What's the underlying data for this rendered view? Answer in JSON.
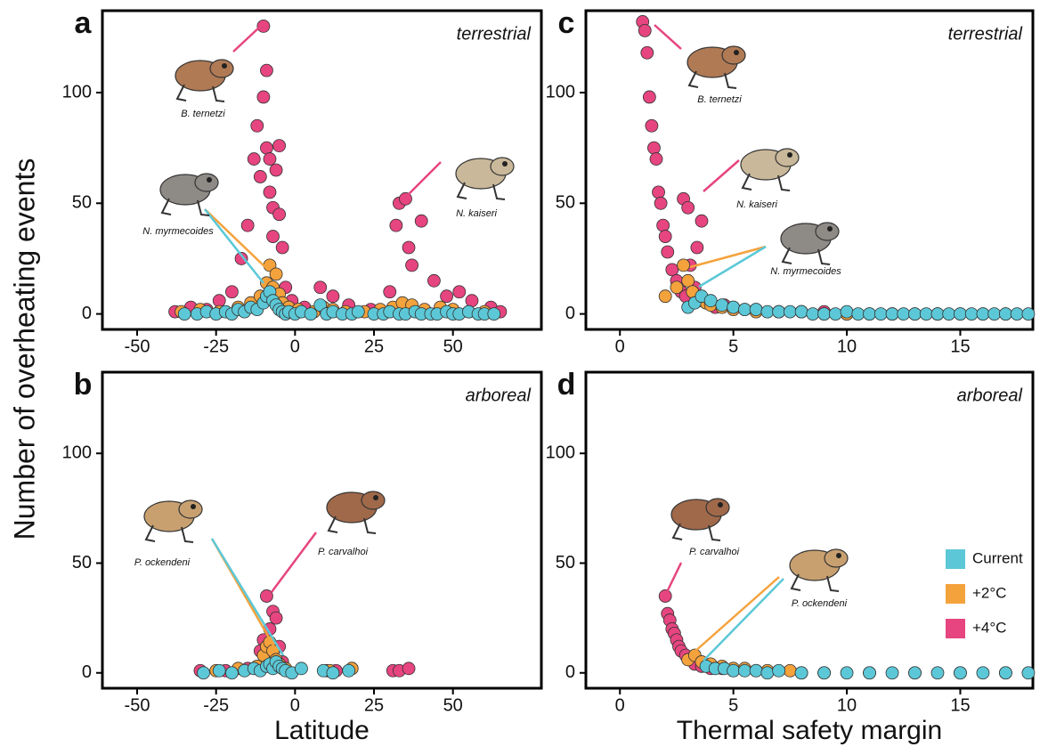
{
  "y_label": "Number of overheating events",
  "chart_data": [
    {
      "type": "scatter",
      "panel": "a",
      "habitat": "terrestrial",
      "xlim": [
        -61,
        78
      ],
      "ylim": [
        -7,
        137
      ],
      "xticks": [
        -50,
        -25,
        0,
        25,
        50
      ],
      "yticks": [
        0,
        50,
        100
      ],
      "annotations": [
        "B. ternetzi",
        "N. myrmecoides",
        "N. kaiseri"
      ],
      "series": [
        {
          "name": "Current",
          "color": "#5cc8d7",
          "x": [
            -35,
            -31,
            -28,
            -25,
            -22,
            -20,
            -18,
            -16,
            -14,
            -12,
            -10,
            -9,
            -8,
            -7,
            -6,
            -5,
            -4,
            -3,
            -2,
            0,
            2,
            5,
            8,
            10,
            12,
            15,
            18,
            20,
            25,
            28,
            30,
            33,
            35,
            38,
            40,
            43,
            45,
            48,
            50,
            52,
            55,
            58,
            60,
            63
          ],
          "values": [
            0,
            0,
            1,
            0,
            1,
            0,
            2,
            1,
            3,
            2,
            5,
            8,
            10,
            6,
            4,
            2,
            1,
            0,
            1,
            0,
            1,
            0,
            4,
            0,
            1,
            0,
            0,
            1,
            0,
            0,
            1,
            0,
            0,
            1,
            0,
            0,
            0,
            1,
            0,
            0,
            1,
            0,
            0,
            0
          ]
        },
        {
          "name": "+2°C",
          "color": "#f4a23c",
          "x": [
            -36,
            -30,
            -24,
            -18,
            -14,
            -11,
            -9,
            -8,
            -7,
            -6,
            -5,
            -4,
            -2,
            1,
            6,
            9,
            12,
            16,
            22,
            27,
            31,
            34,
            37,
            41,
            46,
            50,
            55,
            60
          ],
          "values": [
            1,
            2,
            1,
            3,
            5,
            8,
            14,
            22,
            12,
            18,
            9,
            5,
            3,
            2,
            1,
            3,
            2,
            1,
            1,
            2,
            3,
            5,
            4,
            2,
            3,
            2,
            1,
            1
          ]
        },
        {
          "name": "+4°C",
          "color": "#e6457f",
          "x": [
            -38,
            -33,
            -28,
            -24,
            -20,
            -17,
            -15,
            -13,
            -12,
            -11,
            -10,
            -10,
            -9,
            -9,
            -8,
            -8,
            -7,
            -7,
            -6,
            -5,
            -5,
            -4,
            -3,
            -1,
            3,
            8,
            12,
            17,
            24,
            30,
            32,
            33,
            35,
            36,
            37,
            40,
            44,
            48,
            52,
            56,
            62,
            65
          ],
          "values": [
            1,
            3,
            2,
            6,
            10,
            25,
            40,
            70,
            85,
            62,
            130,
            98,
            110,
            75,
            70,
            55,
            48,
            35,
            65,
            76,
            45,
            30,
            12,
            6,
            3,
            12,
            8,
            4,
            2,
            10,
            40,
            50,
            52,
            30,
            22,
            42,
            15,
            8,
            10,
            6,
            3,
            1
          ]
        }
      ]
    },
    {
      "type": "scatter",
      "panel": "b",
      "habitat": "arboreal",
      "x_label": "Latitude",
      "xlim": [
        -61,
        78
      ],
      "ylim": [
        -7,
        137
      ],
      "xticks": [
        -50,
        -25,
        0,
        25,
        50
      ],
      "yticks": [
        0,
        50,
        100
      ],
      "annotations": [
        "P. ockendeni",
        "P. carvalhoi"
      ],
      "series": [
        {
          "name": "Current",
          "color": "#5cc8d7",
          "x": [
            -29,
            -24,
            -20,
            -16,
            -13,
            -11,
            -9,
            -8,
            -7,
            -6,
            -5,
            -4,
            -3,
            -1,
            2,
            9,
            12,
            17
          ],
          "values": [
            0,
            1,
            0,
            1,
            2,
            1,
            3,
            4,
            2,
            5,
            3,
            2,
            1,
            0,
            2,
            1,
            0,
            1
          ]
        },
        {
          "name": "+2°C",
          "color": "#f4a23c",
          "x": [
            -25,
            -18,
            -12,
            -10,
            -9,
            -8,
            -7,
            -6,
            -5,
            -3,
            11,
            18
          ],
          "values": [
            1,
            2,
            3,
            8,
            12,
            14,
            10,
            6,
            4,
            2,
            1,
            2
          ]
        },
        {
          "name": "+4°C",
          "color": "#e6457f",
          "x": [
            -30,
            -22,
            -15,
            -11,
            -10,
            -9,
            -8,
            -7,
            -6,
            -5,
            -4,
            10,
            13,
            18,
            31,
            33,
            36
          ],
          "values": [
            1,
            1,
            2,
            10,
            15,
            35,
            20,
            28,
            25,
            12,
            5,
            1,
            1,
            2,
            1,
            1,
            2
          ]
        }
      ]
    },
    {
      "type": "scatter",
      "panel": "c",
      "habitat": "terrestrial",
      "xlim": [
        -1.5,
        18.2
      ],
      "ylim": [
        -7,
        137
      ],
      "xticks": [
        0,
        5,
        10,
        15
      ],
      "yticks": [
        0,
        50,
        100
      ],
      "annotations": [
        "B. ternetzi",
        "N. kaiseri",
        "N. myrmecoides"
      ],
      "series": [
        {
          "name": "Current",
          "color": "#5cc8d7",
          "x": [
            3.0,
            3.3,
            3.6,
            4.0,
            4.5,
            5.0,
            5.5,
            6.0,
            6.5,
            7.0,
            7.5,
            8.0,
            8.5,
            9.0,
            9.5,
            10.0,
            10.5,
            11.0,
            11.5,
            12.0,
            12.5,
            13.0,
            13.5,
            14.0,
            14.5,
            15.0,
            15.5,
            16.0,
            16.5,
            17.0,
            17.5,
            18.0
          ],
          "values": [
            3,
            5,
            8,
            6,
            4,
            3,
            2,
            2,
            1,
            1,
            1,
            1,
            0,
            0,
            0,
            1,
            0,
            0,
            0,
            0,
            0,
            0,
            0,
            0,
            0,
            0,
            0,
            0,
            0,
            0,
            0,
            0
          ]
        },
        {
          "name": "+2°C",
          "color": "#f4a23c",
          "x": [
            2.0,
            2.5,
            2.8,
            3.0,
            3.2,
            3.5,
            3.8,
            4.0,
            4.5,
            5.0,
            6.0,
            7.0,
            8.0,
            9.0,
            10.0,
            11.0,
            12.0,
            13.0,
            14.0,
            15.0,
            16.0,
            17.0
          ],
          "values": [
            8,
            12,
            22,
            15,
            10,
            6,
            5,
            4,
            3,
            2,
            1,
            1,
            1,
            0,
            0,
            0,
            0,
            0,
            0,
            0,
            0,
            0
          ]
        },
        {
          "name": "+4°C",
          "color": "#e6457f",
          "x": [
            1.0,
            1.1,
            1.2,
            1.3,
            1.4,
            1.5,
            1.6,
            1.7,
            1.8,
            1.9,
            2.0,
            2.1,
            2.3,
            2.5,
            2.7,
            2.9,
            3.1,
            3.3,
            3.5,
            3.8,
            4.2,
            4.6,
            5.0,
            5.5,
            6.0,
            7.0,
            8.0,
            9.0,
            10.0,
            12.0,
            14.0,
            2.8,
            3.0,
            3.4,
            3.6
          ],
          "values": [
            132,
            128,
            118,
            98,
            85,
            75,
            70,
            55,
            50,
            40,
            35,
            28,
            20,
            15,
            10,
            8,
            22,
            12,
            7,
            5,
            3,
            4,
            3,
            2,
            2,
            1,
            1,
            1,
            0,
            0,
            0,
            52,
            48,
            30,
            42
          ]
        }
      ]
    },
    {
      "type": "scatter",
      "panel": "d",
      "habitat": "arboreal",
      "x_label": "Thermal safety margin",
      "xlim": [
        -1.5,
        18.2
      ],
      "ylim": [
        -7,
        137
      ],
      "xticks": [
        0,
        5,
        10,
        15
      ],
      "yticks": [
        0,
        50,
        100
      ],
      "annotations": [
        "P. carvalhoi",
        "P. ockendeni"
      ],
      "legend": "right",
      "series": [
        {
          "name": "Current",
          "color": "#5cc8d7",
          "x": [
            3.8,
            4.2,
            4.6,
            5.0,
            5.5,
            6,
            6.5,
            7,
            8,
            9,
            10,
            11,
            12,
            13,
            14,
            15,
            16,
            17,
            18
          ],
          "values": [
            3,
            2,
            2,
            1,
            1,
            1,
            0,
            1,
            0,
            0,
            0,
            0,
            0,
            0,
            0,
            0,
            0,
            0,
            0
          ]
        },
        {
          "name": "+2°C",
          "color": "#f4a23c",
          "x": [
            3.0,
            3.3,
            3.6,
            4.0,
            4.5,
            5.0,
            5.5,
            6.5,
            7.5,
            9,
            11,
            13,
            15,
            17
          ],
          "values": [
            6,
            8,
            5,
            4,
            3,
            2,
            2,
            1,
            1,
            0,
            0,
            0,
            0,
            0
          ]
        },
        {
          "name": "+4°C",
          "color": "#e6457f",
          "x": [
            2.0,
            2.1,
            2.2,
            2.3,
            2.4,
            2.5,
            2.6,
            2.7,
            2.9,
            3.1,
            3.3,
            3.6,
            4.0,
            4.5,
            5.0,
            6.0,
            8.0
          ],
          "values": [
            35,
            27,
            24,
            20,
            18,
            15,
            12,
            10,
            8,
            6,
            4,
            3,
            2,
            2,
            1,
            1,
            0
          ]
        }
      ]
    }
  ]
}
